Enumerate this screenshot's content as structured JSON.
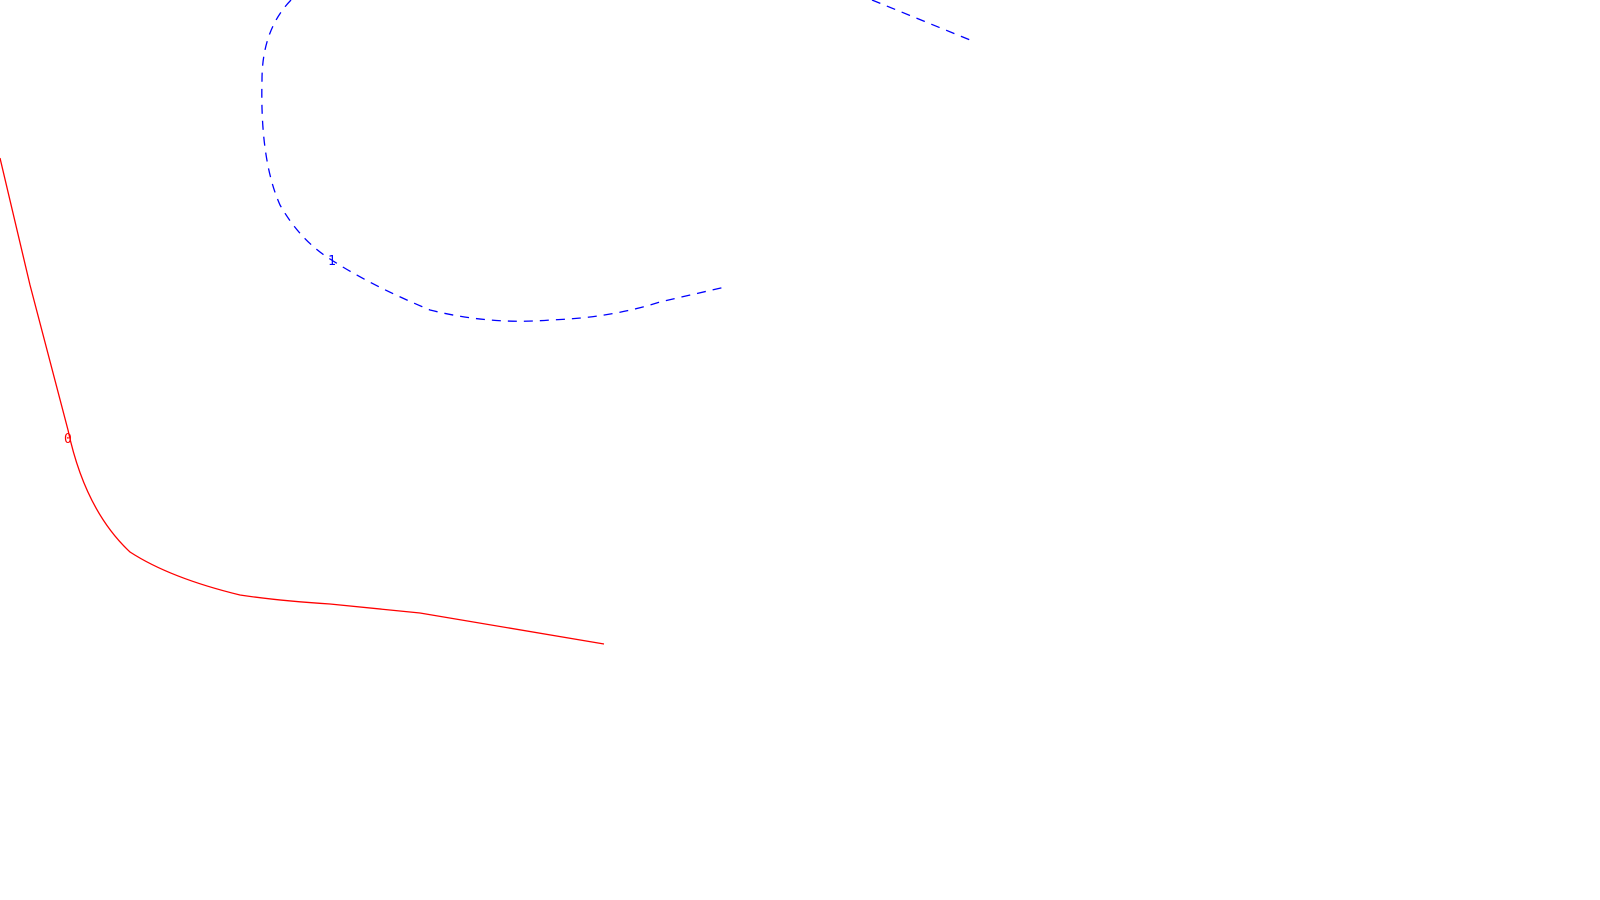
{
  "colors": {
    "background": "#ffffff",
    "path_0": "#ff0000",
    "path_1": "#0000ff"
  },
  "paths": [
    {
      "label": "0",
      "color": "#ff0000",
      "style": "solid"
    },
    {
      "label": "1",
      "color": "#0000ff",
      "style": "dashed"
    }
  ]
}
